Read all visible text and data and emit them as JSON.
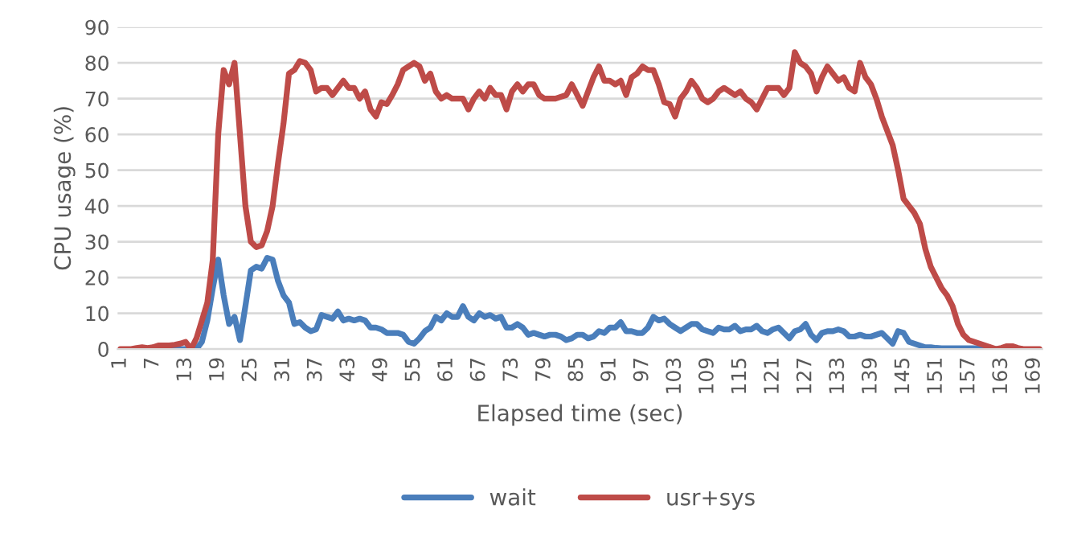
{
  "chart_data": {
    "type": "line",
    "xlabel": "Elapsed time (sec)",
    "ylabel": "CPU usage (%)",
    "categories": [
      "1",
      null,
      null,
      null,
      null,
      null,
      "7",
      null,
      null,
      null,
      null,
      null,
      "13",
      null,
      null,
      null,
      null,
      null,
      "19",
      null,
      null,
      null,
      null,
      null,
      "25",
      null,
      null,
      null,
      null,
      null,
      "31",
      null,
      null,
      null,
      null,
      null,
      "37",
      null,
      null,
      null,
      null,
      null,
      "43",
      null,
      null,
      null,
      null,
      null,
      "49",
      null,
      null,
      null,
      null,
      null,
      "55",
      null,
      null,
      null,
      null,
      null,
      "61",
      null,
      null,
      null,
      null,
      null,
      "67",
      null,
      null,
      null,
      null,
      null,
      "73",
      null,
      null,
      null,
      null,
      null,
      "79",
      null,
      null,
      null,
      null,
      null,
      "85",
      null,
      null,
      null,
      null,
      null,
      "91",
      null,
      null,
      null,
      null,
      null,
      "97",
      null,
      null,
      null,
      null,
      null,
      "103",
      null,
      null,
      null,
      null,
      null,
      "109",
      null,
      null,
      null,
      null,
      null,
      "115",
      null,
      null,
      null,
      null,
      null,
      "121",
      null,
      null,
      null,
      null,
      null,
      "127",
      null,
      null,
      null,
      null,
      null,
      "133",
      null,
      null,
      null,
      null,
      null,
      "139",
      null,
      null,
      null,
      null,
      null,
      "145",
      null,
      null,
      null,
      null,
      null,
      "151",
      null,
      null,
      null,
      null,
      null,
      "157",
      null,
      null,
      null,
      null,
      null,
      "163",
      null,
      null,
      null,
      null,
      null,
      "169",
      null
    ],
    "series": [
      {
        "name": "wait",
        "color": "#4a7ebb",
        "values": [
          null,
          null,
          null,
          null,
          null,
          null,
          null,
          null,
          0,
          0,
          0,
          0,
          0,
          0,
          0,
          2,
          8,
          17,
          25,
          15,
          7,
          9,
          2.5,
          12,
          22,
          23,
          22.5,
          25.5,
          25,
          19,
          15,
          13,
          7,
          7.5,
          6,
          5,
          5.5,
          9.5,
          9,
          8.5,
          10.5,
          8,
          8.5,
          8,
          8.5,
          8,
          6,
          6,
          5.5,
          4.5,
          4.5,
          4.5,
          4,
          2,
          1.5,
          3,
          5,
          6,
          9,
          8,
          10,
          9,
          9,
          12,
          9,
          8,
          10,
          9,
          9.5,
          8.5,
          9,
          6,
          6,
          7,
          6,
          4,
          4.5,
          4,
          3.5,
          4,
          4,
          3.5,
          2.5,
          3,
          4,
          4,
          3,
          3.5,
          5,
          4.5,
          6,
          6,
          7.5,
          5,
          5,
          4.5,
          4.5,
          6,
          9,
          8,
          8.5,
          7,
          6,
          5,
          6,
          7,
          7,
          5.5,
          5,
          4.5,
          6,
          5.5,
          5.5,
          6.5,
          5,
          5.5,
          5.5,
          6.5,
          5,
          4.5,
          5.5,
          6,
          4.5,
          3,
          5,
          5.5,
          7,
          4,
          2.5,
          4.5,
          5,
          5,
          5.5,
          5,
          3.5,
          3.5,
          4,
          3.5,
          3.5,
          4,
          4.5,
          3,
          1.5,
          5,
          4.5,
          2,
          1.5,
          1,
          0.5,
          0.5,
          0.3,
          0.2,
          0.2,
          0.2,
          0.2,
          0.2,
          0.2,
          0.2,
          0.2,
          0.2,
          0,
          0,
          null,
          null,
          null,
          null,
          null,
          null,
          null,
          null
        ]
      },
      {
        "name": "usr+sys",
        "color": "#be4b48",
        "values": [
          0,
          0,
          0,
          0.3,
          0.5,
          0.3,
          0.5,
          1,
          1,
          1,
          1.2,
          1.5,
          2,
          0,
          3,
          8,
          13,
          25,
          60,
          78,
          74,
          80,
          60,
          40,
          30,
          28.5,
          29,
          33,
          40,
          52,
          63,
          77,
          78,
          80.5,
          80,
          78,
          72,
          73,
          73,
          71,
          73,
          75,
          73,
          73,
          70,
          72,
          67,
          65,
          69,
          68.5,
          71,
          74,
          78,
          79,
          80,
          79,
          75,
          77,
          72,
          70,
          71,
          70,
          70,
          70,
          67,
          70,
          72,
          70,
          73,
          71,
          71,
          67,
          72,
          74,
          72,
          74,
          74,
          71,
          70,
          70,
          70,
          70.5,
          71,
          74,
          71,
          68,
          72,
          76,
          79,
          75,
          75,
          74,
          75,
          71,
          76,
          77,
          79,
          78,
          78,
          74,
          69,
          68.5,
          65,
          70,
          72,
          75,
          73,
          70,
          69,
          70,
          72,
          73,
          72,
          71,
          72,
          70,
          69,
          67,
          70,
          73,
          73,
          73,
          71,
          73,
          83,
          80,
          79,
          77,
          72,
          76,
          79,
          77,
          75,
          76,
          73,
          72,
          80,
          76,
          74,
          70,
          65,
          61,
          57,
          50,
          42,
          40,
          38,
          35,
          28,
          23,
          20,
          17,
          15,
          12,
          7,
          4,
          2.5,
          2,
          1.5,
          1,
          0.5,
          0,
          0.3,
          0.8,
          0.8,
          0.3,
          0,
          0,
          0,
          0
        ]
      }
    ],
    "ylim": [
      0,
      90
    ],
    "yticks": [
      0,
      10,
      20,
      30,
      40,
      50,
      60,
      70,
      80,
      90
    ],
    "grid": "y",
    "legend": "bottom",
    "marker": "none",
    "line_style": "solid"
  }
}
